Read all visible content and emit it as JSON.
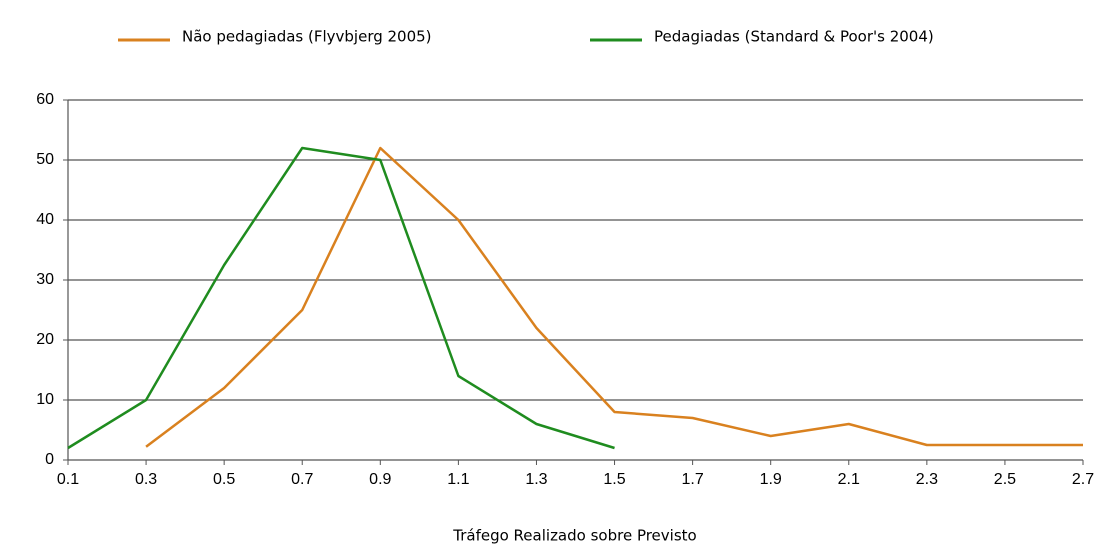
{
  "chart_data": {
    "type": "line",
    "xlabel": "Tráfego Realizado sobre Previsto",
    "series": [
      {
        "name": "Não pedagiadas (Flyvbjerg 2005)",
        "color": "#d9811f",
        "x": [
          0.3,
          0.5,
          0.7,
          0.9,
          1.1,
          1.3,
          1.5,
          1.7,
          1.9,
          2.1,
          2.3,
          2.5,
          2.7
        ],
        "values": [
          2.2,
          12,
          25,
          52,
          40,
          22,
          8,
          7,
          4,
          6,
          2.5,
          2.5,
          2.5
        ]
      },
      {
        "name": "Pedagiadas (Standard & Poor's 2004)",
        "color": "#1f8c1f",
        "x": [
          0.1,
          0.3,
          0.5,
          0.7,
          0.9,
          1.1,
          1.3,
          1.5
        ],
        "values": [
          2,
          10,
          32.5,
          52,
          50,
          14,
          6,
          2
        ]
      }
    ],
    "xlim": [
      0.1,
      2.7
    ],
    "xticks": [
      0.1,
      0.3,
      0.5,
      0.7,
      0.9,
      1.1,
      1.3,
      1.5,
      1.7,
      1.9,
      2.1,
      2.3,
      2.5,
      2.7
    ],
    "ylim": [
      0,
      60
    ],
    "yticks": [
      0,
      10,
      20,
      30,
      40,
      50,
      60
    ],
    "grid": true,
    "legend": "top"
  }
}
